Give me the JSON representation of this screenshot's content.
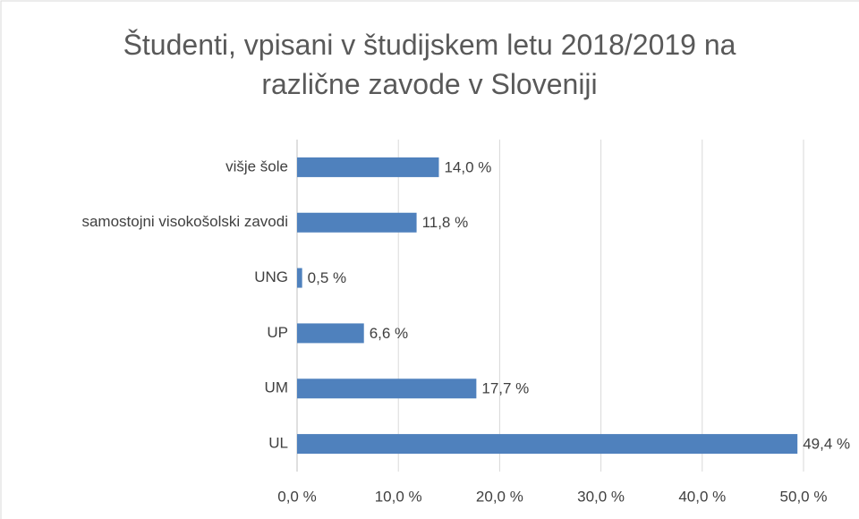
{
  "chart_data": {
    "type": "bar",
    "orientation": "horizontal",
    "title": "Študenti, vpisani v študijskem letu 2018/2019 na različne zavode v Sloveniji",
    "categories": [
      "višje šole",
      "samostojni visokošolski zavodi",
      "UNG",
      "UP",
      "UM",
      "UL"
    ],
    "values": [
      14.0,
      11.8,
      0.5,
      6.6,
      17.7,
      49.4
    ],
    "value_labels": [
      "14,0 %",
      "11,8 %",
      "0,5 %",
      "6,6 %",
      "17,7 %",
      "49,4 %"
    ],
    "color": "#4f81bd",
    "xlim": [
      0,
      50
    ],
    "xticks": [
      {
        "value": 0,
        "label": "0,0 %"
      },
      {
        "value": 10,
        "label": "10,0 %"
      },
      {
        "value": 20,
        "label": "20,0 %"
      },
      {
        "value": 30,
        "label": "30,0 %"
      },
      {
        "value": 40,
        "label": "40,0 %"
      },
      {
        "value": 50,
        "label": "50,0 %"
      }
    ],
    "grid": true
  }
}
